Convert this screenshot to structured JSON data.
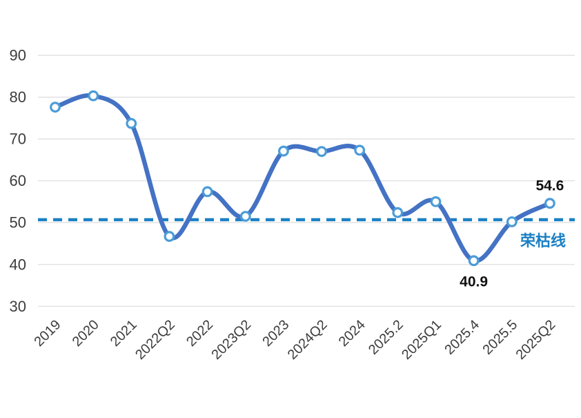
{
  "chart_data": {
    "type": "line",
    "title": "",
    "categories": [
      "2019",
      "2020",
      "2021",
      "2022Q2",
      "2022",
      "2023Q2",
      "2023",
      "2024Q2",
      "2024",
      "2025.2",
      "2025Q1",
      "2025.4",
      "2025.5",
      "2025Q2"
    ],
    "series": [
      {
        "name": "index",
        "values": [
          77.6,
          80.3,
          73.7,
          46.7,
          57.4,
          51.5,
          67.1,
          67.0,
          67.3,
          52.4,
          55.0,
          40.9,
          50.2,
          54.6
        ]
      }
    ],
    "ylim": [
      30,
      90
    ],
    "yticks": [
      30,
      40,
      50,
      60,
      70,
      80,
      90
    ],
    "grid": "horizontal",
    "legend": "none",
    "line_style": "smooth",
    "marker": "open-circle",
    "reference_line": {
      "label": "荣枯线",
      "value": 50.7,
      "style": "dashed"
    },
    "point_labels": [
      {
        "category": "2025.4",
        "text": "40.9",
        "placement": "below"
      },
      {
        "category": "2025Q2",
        "text": "54.6",
        "placement": "above"
      }
    ],
    "colors": {
      "line": "#4472c4",
      "marker_ring": "#4b9cd8",
      "marker_fill": "#ffffff",
      "reference": "#1b80c4",
      "grid": "#dcdcdc",
      "axis_text": "#3d3d3d",
      "annotation_text": "#111111"
    }
  }
}
